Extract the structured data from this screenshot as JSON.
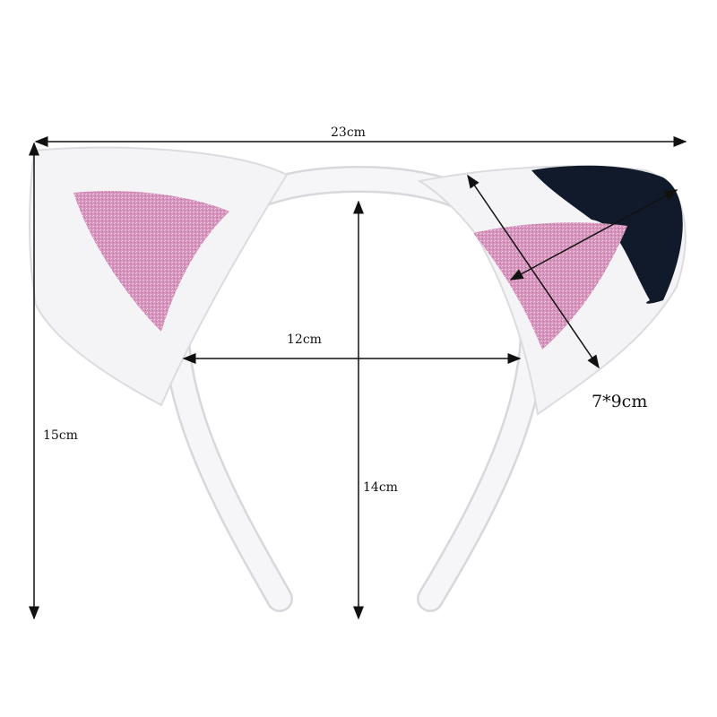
{
  "product": "cat-ear-headband",
  "colors": {
    "fur": "#f4f4f6",
    "glitter": "#d99bc0",
    "tip": "#111a2b",
    "arrow": "#111111"
  },
  "dimensions": {
    "overall_width": "23cm",
    "overall_height": "15cm",
    "band_inner_width": "12cm",
    "band_height": "14cm",
    "ear_size": "7*9cm"
  }
}
